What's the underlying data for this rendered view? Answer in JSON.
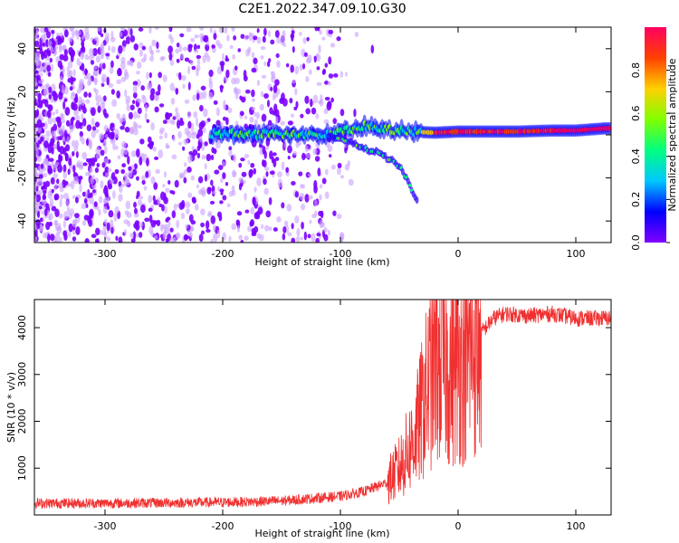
{
  "title": "C2E1.2022.347.09.10.G30",
  "chart_data": [
    {
      "type": "heatmap",
      "xlabel": "Height of straight line (km)",
      "ylabel": "Frequency (Hz)",
      "xlim": [
        -360,
        130
      ],
      "ylim": [
        -50,
        50
      ],
      "x_ticks": [
        -300,
        -200,
        -100,
        0,
        100
      ],
      "y_ticks": [
        -40,
        -20,
        0,
        20,
        40
      ],
      "colorbar": {
        "label": "Normalized spectral amplitude",
        "range": [
          0.0,
          1.0
        ],
        "ticks": [
          0.0,
          0.2,
          0.4,
          0.6,
          0.8
        ],
        "colormap": [
          "#7f00ff",
          "#0000ff",
          "#00c8ff",
          "#00ff80",
          "#80ff00",
          "#ffd000",
          "#ff4000",
          "#ff0060"
        ]
      },
      "signal_track": [
        {
          "x": -205,
          "y": 0.5
        },
        {
          "x": -190,
          "y": 0.3
        },
        {
          "x": -170,
          "y": 0.3
        },
        {
          "x": -150,
          "y": 0.4
        },
        {
          "x": -130,
          "y": 0.2
        },
        {
          "x": -110,
          "y": 0.0
        },
        {
          "x": -95,
          "y": 2.0
        },
        {
          "x": -80,
          "y": 4.0
        },
        {
          "x": -60,
          "y": 2.5
        },
        {
          "x": -40,
          "y": 1.5
        },
        {
          "x": -20,
          "y": 1.0
        },
        {
          "x": 0,
          "y": 1.5
        },
        {
          "x": 20,
          "y": 1.5
        },
        {
          "x": 50,
          "y": 1.5
        },
        {
          "x": 80,
          "y": 2.0
        },
        {
          "x": 100,
          "y": 2.0
        },
        {
          "x": 125,
          "y": 3.0
        }
      ],
      "branch_track": [
        {
          "x": -110,
          "y": 0
        },
        {
          "x": -90,
          "y": -4
        },
        {
          "x": -70,
          "y": -8
        },
        {
          "x": -50,
          "y": -14
        },
        {
          "x": -35,
          "y": -30
        }
      ]
    },
    {
      "type": "line",
      "xlabel": "Height of straight line (km)",
      "ylabel": "SNR (10 * v/v)",
      "xlim": [
        -360,
        130
      ],
      "ylim": [
        0,
        4600
      ],
      "x_ticks": [
        -300,
        -200,
        -100,
        0,
        100
      ],
      "y_ticks": [
        1000,
        2000,
        3000,
        4000
      ],
      "color": "#f03030",
      "series": [
        {
          "x": [
            -360,
            -300,
            -250,
            -200,
            -180,
            -150,
            -100,
            -80,
            -60,
            -50,
            -40,
            -35,
            -30,
            -25,
            -20,
            -15,
            -10,
            -5,
            0,
            5,
            10,
            15,
            20,
            30,
            40,
            60,
            80,
            100,
            130
          ],
          "y": [
            250,
            250,
            260,
            270,
            280,
            300,
            400,
            500,
            700,
            1000,
            1500,
            1800,
            2300,
            2800,
            3300,
            3200,
            3300,
            3100,
            3300,
            3400,
            3500,
            3700,
            3900,
            4200,
            4300,
            4250,
            4300,
            4200,
            4200
          ]
        }
      ]
    }
  ]
}
